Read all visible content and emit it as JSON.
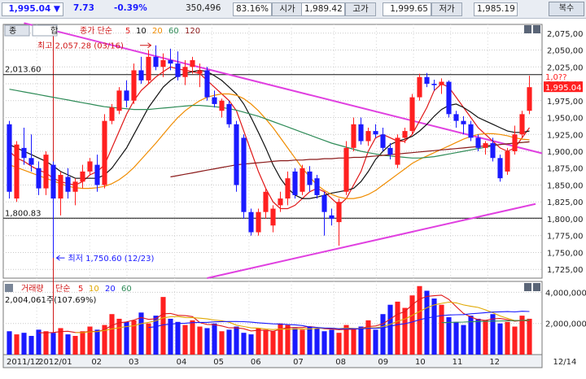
{
  "toolbar": {
    "price": "1,995.04",
    "change_arrow": "▼",
    "change": "7.73",
    "change_pct": "-0.39%",
    "volume": "350,496",
    "ratio": "83.16%",
    "open_label": "시가",
    "open": "1,989.42",
    "high_label": "고가",
    "high": "1,999.65",
    "low_label": "저가",
    "low": "1,985.19",
    "copy_button": "복수"
  },
  "colors": {
    "up": "#ff2020",
    "down": "#1a1aff",
    "ma5": "#e01818",
    "ma10": "#111111",
    "ma20": "#f08c00",
    "ma60": "#2e8b57",
    "ma120": "#8b1a1a",
    "trendline": "#e040e0",
    "price_marker": "#ff2020"
  },
  "chart_data": [
    {
      "type": "candlestick",
      "title": "",
      "legend": {
        "tabs": [
          "종",
          "합"
        ],
        "label": "종가 단순",
        "periods": [
          "5",
          "10",
          "20",
          "60",
          "120"
        ]
      },
      "y_ticks": [
        1725,
        1750,
        1775,
        1800,
        1825,
        1850,
        1875,
        1900,
        1925,
        1950,
        1975,
        2000,
        2025,
        2050,
        2075
      ],
      "ylim": [
        1712,
        2088
      ],
      "x_labels": [
        "2011/12",
        "2012/01",
        "02",
        "03",
        "04",
        "05",
        "06",
        "07",
        "08",
        "09",
        "10",
        "11",
        "12",
        "12/14"
      ],
      "horizontal_levels": [
        {
          "value": 2013.6,
          "label": "2,013.60"
        },
        {
          "value": 1800.83,
          "label": "1,800.83"
        }
      ],
      "annotations": {
        "high": {
          "label": "최고",
          "value": "2,057.28 (03/16)"
        },
        "low": {
          "label": "최저",
          "value": "1,750.60 (12/23)"
        },
        "current_price": "1,995.04",
        "current_price_partial": "1,0??"
      },
      "candles": [
        {
          "o": 1940,
          "h": 1945,
          "l": 1830,
          "c": 1840
        },
        {
          "o": 1830,
          "h": 1915,
          "l": 1825,
          "c": 1910
        },
        {
          "o": 1905,
          "h": 1935,
          "l": 1880,
          "c": 1890
        },
        {
          "o": 1890,
          "h": 1925,
          "l": 1870,
          "c": 1880
        },
        {
          "o": 1875,
          "h": 1885,
          "l": 1835,
          "c": 1845
        },
        {
          "o": 1845,
          "h": 1900,
          "l": 1835,
          "c": 1895
        },
        {
          "o": 1880,
          "h": 1885,
          "l": 1750,
          "c": 1830
        },
        {
          "o": 1830,
          "h": 1870,
          "l": 1805,
          "c": 1865
        },
        {
          "o": 1862,
          "h": 1875,
          "l": 1830,
          "c": 1840
        },
        {
          "o": 1840,
          "h": 1860,
          "l": 1820,
          "c": 1855
        },
        {
          "o": 1855,
          "h": 1880,
          "l": 1845,
          "c": 1870
        },
        {
          "o": 1870,
          "h": 1890,
          "l": 1865,
          "c": 1885
        },
        {
          "o": 1880,
          "h": 1895,
          "l": 1840,
          "c": 1850
        },
        {
          "o": 1850,
          "h": 1955,
          "l": 1845,
          "c": 1945
        },
        {
          "o": 1945,
          "h": 1970,
          "l": 1940,
          "c": 1965
        },
        {
          "o": 1960,
          "h": 1995,
          "l": 1955,
          "c": 1990
        },
        {
          "o": 1990,
          "h": 2005,
          "l": 1965,
          "c": 1975
        },
        {
          "o": 1975,
          "h": 2030,
          "l": 1970,
          "c": 2020
        },
        {
          "o": 2020,
          "h": 2040,
          "l": 2000,
          "c": 2005
        },
        {
          "o": 2005,
          "h": 2050,
          "l": 2000,
          "c": 2040
        },
        {
          "o": 2040,
          "h": 2057,
          "l": 2020,
          "c": 2025
        },
        {
          "o": 2025,
          "h": 2045,
          "l": 2010,
          "c": 2035
        },
        {
          "o": 2035,
          "h": 2052,
          "l": 2020,
          "c": 2030
        },
        {
          "o": 2030,
          "h": 2048,
          "l": 2005,
          "c": 2010
        },
        {
          "o": 2010,
          "h": 2035,
          "l": 1998,
          "c": 2025
        },
        {
          "o": 2025,
          "h": 2040,
          "l": 2015,
          "c": 2035
        },
        {
          "o": 2015,
          "h": 2030,
          "l": 1995,
          "c": 2020
        },
        {
          "o": 2020,
          "h": 2025,
          "l": 1975,
          "c": 1980
        },
        {
          "o": 1980,
          "h": 1990,
          "l": 1965,
          "c": 1970
        },
        {
          "o": 1960,
          "h": 1978,
          "l": 1950,
          "c": 1975
        },
        {
          "o": 1970,
          "h": 1975,
          "l": 1935,
          "c": 1940
        },
        {
          "o": 1940,
          "h": 1945,
          "l": 1840,
          "c": 1850
        },
        {
          "o": 1920,
          "h": 1925,
          "l": 1800,
          "c": 1810
        },
        {
          "o": 1810,
          "h": 1815,
          "l": 1775,
          "c": 1780
        },
        {
          "o": 1780,
          "h": 1815,
          "l": 1775,
          "c": 1810
        },
        {
          "o": 1810,
          "h": 1845,
          "l": 1800,
          "c": 1840
        },
        {
          "o": 1790,
          "h": 1820,
          "l": 1780,
          "c": 1815
        },
        {
          "o": 1820,
          "h": 1840,
          "l": 1810,
          "c": 1830
        },
        {
          "o": 1830,
          "h": 1870,
          "l": 1820,
          "c": 1860
        },
        {
          "o": 1870,
          "h": 1875,
          "l": 1830,
          "c": 1835
        },
        {
          "o": 1840,
          "h": 1880,
          "l": 1835,
          "c": 1875
        },
        {
          "o": 1870,
          "h": 1878,
          "l": 1840,
          "c": 1850
        },
        {
          "o": 1860,
          "h": 1865,
          "l": 1830,
          "c": 1835
        },
        {
          "o": 1835,
          "h": 1840,
          "l": 1775,
          "c": 1810
        },
        {
          "o": 1805,
          "h": 1815,
          "l": 1790,
          "c": 1800
        },
        {
          "o": 1795,
          "h": 1830,
          "l": 1760,
          "c": 1825
        },
        {
          "o": 1840,
          "h": 1915,
          "l": 1835,
          "c": 1905
        },
        {
          "o": 1905,
          "h": 1950,
          "l": 1900,
          "c": 1940
        },
        {
          "o": 1940,
          "h": 1950,
          "l": 1910,
          "c": 1915
        },
        {
          "o": 1915,
          "h": 1935,
          "l": 1908,
          "c": 1930
        },
        {
          "o": 1930,
          "h": 1940,
          "l": 1920,
          "c": 1925
        },
        {
          "o": 1925,
          "h": 1935,
          "l": 1900,
          "c": 1905
        },
        {
          "o": 1905,
          "h": 1912,
          "l": 1888,
          "c": 1895
        },
        {
          "o": 1880,
          "h": 1925,
          "l": 1875,
          "c": 1920
        },
        {
          "o": 1920,
          "h": 1935,
          "l": 1912,
          "c": 1930
        },
        {
          "o": 1930,
          "h": 1985,
          "l": 1925,
          "c": 1980
        },
        {
          "o": 1980,
          "h": 2015,
          "l": 1975,
          "c": 2010
        },
        {
          "o": 2010,
          "h": 2016,
          "l": 1995,
          "c": 2000
        },
        {
          "o": 2000,
          "h": 2006,
          "l": 1990,
          "c": 1998
        },
        {
          "o": 1998,
          "h": 2008,
          "l": 1985,
          "c": 2003
        },
        {
          "o": 2003,
          "h": 2005,
          "l": 1950,
          "c": 1955
        },
        {
          "o": 1955,
          "h": 1960,
          "l": 1935,
          "c": 1945
        },
        {
          "o": 1945,
          "h": 1952,
          "l": 1925,
          "c": 1940
        },
        {
          "o": 1940,
          "h": 1945,
          "l": 1915,
          "c": 1920
        },
        {
          "o": 1920,
          "h": 1925,
          "l": 1900,
          "c": 1905
        },
        {
          "o": 1905,
          "h": 1915,
          "l": 1895,
          "c": 1912
        },
        {
          "o": 1912,
          "h": 1920,
          "l": 1885,
          "c": 1890
        },
        {
          "o": 1890,
          "h": 1895,
          "l": 1855,
          "c": 1860
        },
        {
          "o": 1870,
          "h": 1905,
          "l": 1865,
          "c": 1900
        },
        {
          "o": 1900,
          "h": 1938,
          "l": 1895,
          "c": 1925
        },
        {
          "o": 1925,
          "h": 1960,
          "l": 1920,
          "c": 1955
        },
        {
          "o": 1960,
          "h": 2012,
          "l": 1955,
          "c": 1995
        }
      ],
      "moving_averages": [
        {
          "period": "5",
          "values": [
            1900,
            1890,
            1885,
            1878,
            1872,
            1868,
            1860,
            1855,
            1852,
            1850,
            1855,
            1865,
            1870,
            1880,
            1905,
            1930,
            1955,
            1975,
            1990,
            2000,
            2010,
            2018,
            2025,
            2022,
            2020,
            2018,
            2015,
            2005,
            1995,
            1985,
            1975,
            1960,
            1930,
            1900,
            1870,
            1845,
            1825,
            1815,
            1815,
            1820,
            1830,
            1840,
            1845,
            1840,
            1830,
            1820,
            1830,
            1850,
            1870,
            1900,
            1920,
            1925,
            1920,
            1915,
            1915,
            1925,
            1945,
            1965,
            1990,
            2000,
            1995,
            1980,
            1965,
            1950,
            1935,
            1925,
            1915,
            1905,
            1900,
            1905,
            1920,
            1935
          ]
        },
        {
          "period": "10",
          "values": [
            1910,
            1905,
            1900,
            1895,
            1890,
            1885,
            1878,
            1870,
            1865,
            1860,
            1860,
            1860,
            1860,
            1865,
            1875,
            1890,
            1905,
            1925,
            1945,
            1965,
            1980,
            1995,
            2005,
            2012,
            2015,
            2018,
            2020,
            2018,
            2012,
            2005,
            1995,
            1985,
            1970,
            1950,
            1928,
            1905,
            1880,
            1860,
            1845,
            1835,
            1830,
            1830,
            1832,
            1835,
            1838,
            1840,
            1842,
            1845,
            1855,
            1870,
            1888,
            1900,
            1910,
            1915,
            1918,
            1922,
            1930,
            1940,
            1952,
            1962,
            1968,
            1970,
            1965,
            1958,
            1950,
            1945,
            1940,
            1935,
            1930,
            1928,
            1928,
            1930
          ]
        },
        {
          "period": "20",
          "values": [
            1880,
            1876,
            1872,
            1868,
            1864,
            1860,
            1856,
            1852,
            1848,
            1846,
            1845,
            1845,
            1846,
            1848,
            1852,
            1858,
            1866,
            1876,
            1888,
            1900,
            1912,
            1925,
            1938,
            1950,
            1960,
            1968,
            1975,
            1980,
            1983,
            1985,
            1985,
            1983,
            1978,
            1970,
            1960,
            1948,
            1935,
            1920,
            1905,
            1890,
            1875,
            1862,
            1850,
            1842,
            1836,
            1832,
            1830,
            1830,
            1832,
            1836,
            1842,
            1850,
            1858,
            1866,
            1874,
            1882,
            1888,
            1893,
            1898,
            1903,
            1908,
            1913,
            1918,
            1922,
            1925,
            1926,
            1926,
            1925,
            1923,
            1920,
            1918,
            1917
          ]
        },
        {
          "period": "60",
          "values": [
            1992,
            1990,
            1988,
            1986,
            1984,
            1982,
            1980,
            1978,
            1976,
            1974,
            1972,
            1970,
            1968,
            1966,
            1965,
            1964,
            1963,
            1962,
            1962,
            1962,
            1963,
            1964,
            1965,
            1966,
            1967,
            1968,
            1968,
            1967,
            1966,
            1965,
            1963,
            1961,
            1958,
            1955,
            1952,
            1948,
            1944,
            1940,
            1936,
            1932,
            1928,
            1924,
            1920,
            1916,
            1912,
            1909,
            1906,
            1903,
            1900,
            1898,
            1896,
            1894,
            1893,
            1892,
            1891,
            1890,
            1890,
            1891,
            1892,
            1894,
            1896,
            1898,
            1900,
            1902,
            1904,
            1906,
            1908,
            1910,
            1911,
            1912,
            1913,
            1914
          ]
        },
        {
          "period": "120",
          "values": [
            null,
            null,
            null,
            null,
            null,
            null,
            null,
            null,
            null,
            null,
            null,
            null,
            null,
            null,
            null,
            null,
            null,
            null,
            null,
            null,
            null,
            null,
            1862,
            1864,
            1866,
            1868,
            1870,
            1872,
            1874,
            1876,
            1878,
            1880,
            1881,
            1882,
            1883,
            1884,
            1885,
            1886,
            1886,
            1887,
            1887,
            1888,
            1888,
            1889,
            1889,
            1890,
            1890,
            1891,
            1891,
            1892,
            1893,
            1894,
            1895,
            1896,
            1897,
            1898,
            1899,
            1900,
            1901,
            1902,
            1903,
            1904,
            1905,
            1906,
            1907,
            1908,
            1909,
            1910,
            1911,
            1912,
            1913,
            1914
          ]
        }
      ]
    },
    {
      "type": "bar",
      "title": "",
      "legend": {
        "label": "거래량",
        "sublabel": "단순",
        "periods": [
          "5",
          "10",
          "20",
          "60"
        ]
      },
      "current_volume_label": "2,004,061주(107.69%)",
      "y_ticks": [
        {
          "value": 4000000,
          "label": "4,000,000"
        },
        {
          "value": 2000000,
          "label": "2,000,000"
        }
      ],
      "ylim": [
        0,
        4700000
      ],
      "values": [
        1500000,
        1300000,
        1400000,
        1200000,
        1600000,
        1500000,
        1400000,
        1700000,
        1300000,
        1200000,
        1500000,
        1800000,
        1600000,
        1900000,
        2600000,
        2300000,
        2100000,
        2200000,
        2700000,
        2000000,
        2500000,
        3700000,
        2300000,
        2100000,
        1900000,
        2200000,
        1800000,
        1700000,
        2000000,
        1500000,
        1600000,
        1800000,
        1400000,
        1300000,
        1700000,
        1600000,
        1500000,
        2000000,
        1900000,
        1700000,
        1600000,
        1800000,
        1700000,
        1500000,
        1600000,
        1400000,
        1900000,
        1700000,
        1800000,
        2200000,
        1600000,
        2600000,
        3200000,
        3400000,
        3000000,
        3800000,
        4400000,
        4100000,
        3600000,
        3200000,
        2400000,
        2100000,
        1900000,
        2500000,
        2300000,
        2200000,
        2600000,
        2000000,
        2100000,
        1800000,
        2500000,
        2300000
      ]
    }
  ]
}
